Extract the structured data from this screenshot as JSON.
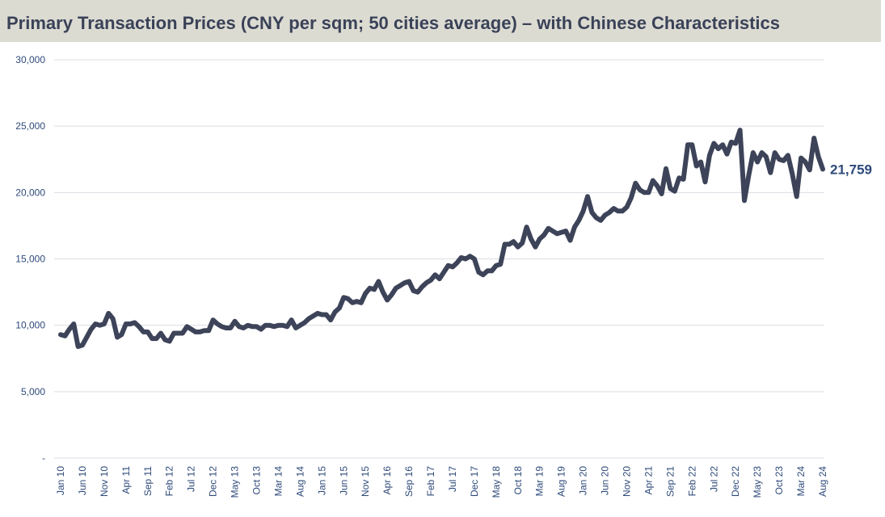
{
  "chart_data": {
    "type": "line",
    "title": "Primary Transaction Prices (CNY per sqm; 50 cities average) – with Chinese Characteristics",
    "categories": [
      "Jan 10",
      null,
      null,
      null,
      null,
      "Jun 10",
      null,
      null,
      null,
      null,
      "Nov 10",
      null,
      null,
      null,
      null,
      "Apr 11",
      null,
      null,
      null,
      null,
      "Sep 11",
      null,
      null,
      null,
      null,
      "Feb 12",
      null,
      null,
      null,
      null,
      "Jul 12",
      null,
      null,
      null,
      null,
      "Dec 12",
      null,
      null,
      null,
      null,
      "May 13",
      null,
      null,
      null,
      null,
      "Oct 13",
      null,
      null,
      null,
      null,
      "Mar 14",
      null,
      null,
      null,
      null,
      "Aug 14",
      null,
      null,
      null,
      null,
      "Jan 15",
      null,
      null,
      null,
      null,
      "Jun 15",
      null,
      null,
      null,
      null,
      "Nov 15",
      null,
      null,
      null,
      null,
      "Apr 16",
      null,
      null,
      null,
      null,
      "Sep 16",
      null,
      null,
      null,
      null,
      "Feb 17",
      null,
      null,
      null,
      null,
      "Jul 17",
      null,
      null,
      null,
      null,
      "Dec 17",
      null,
      null,
      null,
      null,
      "May 18",
      null,
      null,
      null,
      null,
      "Oct 18",
      null,
      null,
      null,
      null,
      "Mar 19",
      null,
      null,
      null,
      null,
      "Aug 19",
      null,
      null,
      null,
      null,
      "Jan 20",
      null,
      null,
      null,
      null,
      "Jun 20",
      null,
      null,
      null,
      null,
      "Nov 20",
      null,
      null,
      null,
      null,
      "Apr 21",
      null,
      null,
      null,
      null,
      "Sep 21",
      null,
      null,
      null,
      null,
      "Feb 22",
      null,
      null,
      null,
      null,
      "Jul 22",
      null,
      null,
      null,
      null,
      "Dec 22",
      null,
      null,
      null,
      null,
      "May 23",
      null,
      null,
      null,
      null,
      "Oct 23",
      null,
      null,
      null,
      null,
      "Mar 24",
      null,
      null,
      null,
      null,
      "Aug 24"
    ],
    "series": [
      {
        "name": "Primary Transaction Prices",
        "color": "#3d4459",
        "values": [
          9300,
          9200,
          9700,
          10100,
          8400,
          8500,
          9100,
          9700,
          10100,
          10000,
          10100,
          10900,
          10500,
          9100,
          9300,
          10100,
          10100,
          10200,
          9900,
          9500,
          9500,
          9000,
          9000,
          9400,
          8900,
          8800,
          9400,
          9400,
          9400,
          9900,
          9700,
          9500,
          9500,
          9600,
          9600,
          10400,
          10100,
          9900,
          9800,
          9800,
          10300,
          9900,
          9800,
          10000,
          9900,
          9900,
          9700,
          10000,
          10000,
          9900,
          10000,
          10000,
          9900,
          10400,
          9800,
          10000,
          10200,
          10500,
          10700,
          10900,
          10800,
          10800,
          10400,
          11000,
          11300,
          12100,
          12000,
          11700,
          11800,
          11700,
          12400,
          12800,
          12700,
          13300,
          12500,
          11900,
          12300,
          12800,
          13000,
          13200,
          13300,
          12600,
          12500,
          12900,
          13200,
          13400,
          13800,
          13500,
          14000,
          14500,
          14400,
          14700,
          15100,
          15000,
          15200,
          15000,
          14000,
          13800,
          14100,
          14100,
          14500,
          14600,
          16100,
          16100,
          16300,
          15900,
          16200,
          17400,
          16500,
          15900,
          16500,
          16800,
          17300,
          17100,
          16900,
          17000,
          17100,
          16400,
          17400,
          17900,
          18600,
          19700,
          18500,
          18100,
          17900,
          18300,
          18500,
          18800,
          18600,
          18600,
          18900,
          19600,
          20700,
          20200,
          20000,
          20000,
          20900,
          20500,
          19900,
          21800,
          20300,
          20100,
          21100,
          21000,
          23600,
          23600,
          22000,
          22300,
          20800,
          22800,
          23700,
          23300,
          23600,
          22900,
          23800,
          23700,
          24700,
          19400,
          21300,
          23000,
          22300,
          23000,
          22700,
          21500,
          23000,
          22500,
          22400,
          22800,
          21400,
          19700,
          22600,
          22300,
          21700,
          24100,
          22700,
          21759
        ],
        "value_labels": [
          null,
          null,
          null,
          null,
          null,
          null,
          null,
          null,
          null,
          null,
          null,
          null,
          null,
          null,
          null,
          null,
          null,
          null,
          null,
          null,
          null,
          null,
          null,
          null,
          null,
          null,
          null,
          null,
          null,
          null,
          null,
          null,
          null,
          null,
          null,
          null,
          null,
          null,
          null,
          null,
          null,
          null,
          null,
          null,
          null,
          null,
          null,
          null,
          null,
          null,
          null,
          null,
          null,
          null,
          null,
          null,
          null,
          null,
          null,
          null,
          null,
          null,
          null,
          null,
          null,
          null,
          null,
          null,
          null,
          null,
          null,
          null,
          null,
          null,
          null,
          null,
          null,
          null,
          null,
          null,
          null,
          null,
          null,
          null,
          null,
          null,
          null,
          null,
          null,
          null,
          null,
          null,
          null,
          null,
          null,
          null,
          null,
          null,
          null,
          null,
          null,
          null,
          null,
          null,
          null,
          null,
          null,
          null,
          null,
          null,
          null,
          null,
          null,
          null,
          null,
          null,
          null,
          null,
          null,
          null,
          null,
          null,
          null,
          null,
          null,
          null,
          null,
          null,
          null,
          null,
          null,
          null,
          null,
          null,
          null,
          null,
          null,
          null,
          null,
          null,
          null,
          null,
          null,
          null,
          null,
          null,
          null,
          null,
          null,
          null,
          null,
          null,
          null,
          null,
          null,
          null,
          null,
          null,
          null,
          null,
          null,
          null,
          null,
          null,
          null,
          null,
          null,
          null,
          null,
          null,
          null,
          null,
          null,
          null,
          null,
          "21,759"
        ]
      }
    ],
    "ylim": [
      0,
      30000
    ],
    "yticks": [
      {
        "value": 0,
        "label": "-"
      },
      {
        "value": 5000,
        "label": "5,000"
      },
      {
        "value": 10000,
        "label": "10,000"
      },
      {
        "value": 15000,
        "label": "15,000"
      },
      {
        "value": 20000,
        "label": "20,000"
      },
      {
        "value": 25000,
        "label": "25,000"
      },
      {
        "value": 30000,
        "label": "30,000"
      }
    ],
    "grid": true
  }
}
